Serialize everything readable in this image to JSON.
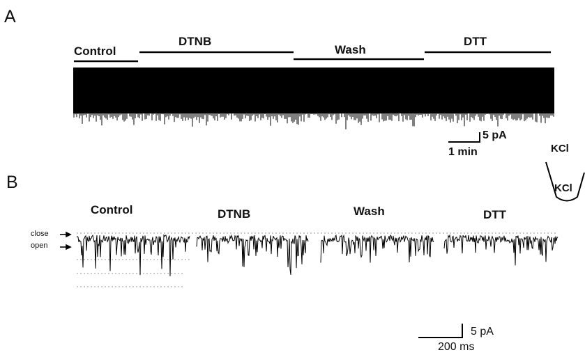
{
  "panels": {
    "a": {
      "letter": "A",
      "conditions": [
        "Control",
        "DTNB",
        "Wash",
        "DTT"
      ],
      "scale_current": "5 pA",
      "scale_time": "1 min"
    },
    "b": {
      "letter": "B",
      "conditions": [
        "Control",
        "DTNB",
        "Wash",
        "DTT"
      ],
      "level_close": "close",
      "level_open": "open",
      "scale_current": "5 pA",
      "scale_time": "200 ms"
    }
  },
  "inset": {
    "top_solution": "KCl",
    "bottom_solution": "KCl"
  },
  "colors": {
    "trace": "#000000",
    "dotted_level": "#9a9a9a"
  }
}
